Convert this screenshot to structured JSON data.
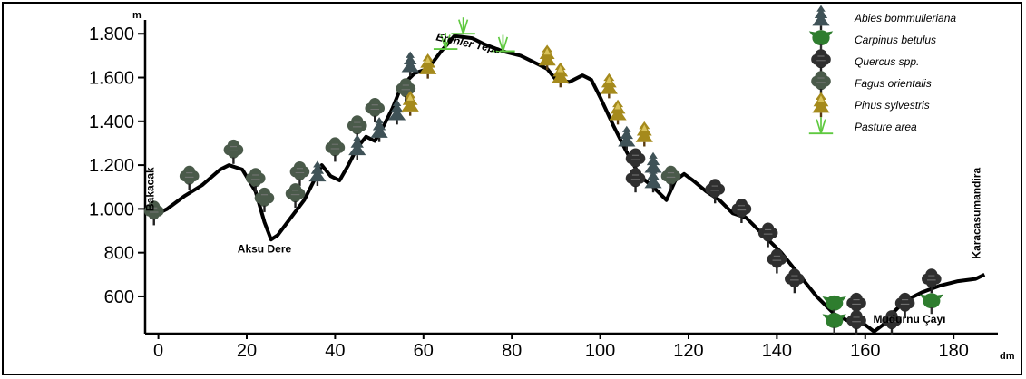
{
  "y_axis": {
    "unit": "m",
    "ticks": [
      {
        "value": 600,
        "label": "600"
      },
      {
        "value": 800,
        "label": "800"
      },
      {
        "value": 1000,
        "label": "1.000"
      },
      {
        "value": 1200,
        "label": "1.200"
      },
      {
        "value": 1400,
        "label": "1.400"
      },
      {
        "value": 1600,
        "label": "1.600"
      },
      {
        "value": 1800,
        "label": "1.800"
      }
    ],
    "range": [
      430,
      1830
    ]
  },
  "x_axis": {
    "unit": "dm",
    "ticks": [
      {
        "value": 0,
        "label": "0"
      },
      {
        "value": 20,
        "label": "20"
      },
      {
        "value": 40,
        "label": "40"
      },
      {
        "value": 60,
        "label": "60"
      },
      {
        "value": 80,
        "label": "80"
      },
      {
        "value": 100,
        "label": "100"
      },
      {
        "value": 120,
        "label": "120"
      },
      {
        "value": 140,
        "label": "140"
      },
      {
        "value": 160,
        "label": "160"
      },
      {
        "value": 180,
        "label": "180"
      }
    ],
    "range": [
      -3,
      189
    ]
  },
  "profile": [
    [
      -2,
      960
    ],
    [
      2,
      1000
    ],
    [
      6,
      1060
    ],
    [
      10,
      1110
    ],
    [
      14,
      1180
    ],
    [
      16,
      1200
    ],
    [
      19,
      1180
    ],
    [
      22,
      1080
    ],
    [
      24,
      940
    ],
    [
      25.5,
      860
    ],
    [
      27,
      880
    ],
    [
      30,
      960
    ],
    [
      33,
      1040
    ],
    [
      35,
      1120
    ],
    [
      37,
      1200
    ],
    [
      39,
      1150
    ],
    [
      41,
      1130
    ],
    [
      43,
      1200
    ],
    [
      45,
      1280
    ],
    [
      47,
      1330
    ],
    [
      49,
      1310
    ],
    [
      51,
      1380
    ],
    [
      53,
      1460
    ],
    [
      55,
      1560
    ],
    [
      58,
      1620
    ],
    [
      61,
      1640
    ],
    [
      64,
      1720
    ],
    [
      67,
      1790
    ],
    [
      71,
      1780
    ],
    [
      74,
      1750
    ],
    [
      78,
      1720
    ],
    [
      82,
      1700
    ],
    [
      86,
      1660
    ],
    [
      88,
      1640
    ],
    [
      90,
      1590
    ],
    [
      93,
      1580
    ],
    [
      96,
      1610
    ],
    [
      98,
      1590
    ],
    [
      100,
      1510
    ],
    [
      103,
      1380
    ],
    [
      106,
      1260
    ],
    [
      109,
      1150
    ],
    [
      112,
      1100
    ],
    [
      115,
      1040
    ],
    [
      117,
      1130
    ],
    [
      119,
      1160
    ],
    [
      121,
      1130
    ],
    [
      124,
      1080
    ],
    [
      127,
      1040
    ],
    [
      130,
      980
    ],
    [
      133,
      960
    ],
    [
      137,
      880
    ],
    [
      141,
      800
    ],
    [
      145,
      700
    ],
    [
      149,
      600
    ],
    [
      153,
      520
    ],
    [
      157,
      480
    ],
    [
      160,
      470
    ],
    [
      162,
      440
    ],
    [
      164,
      470
    ],
    [
      166,
      520
    ],
    [
      169,
      580
    ],
    [
      173,
      620
    ],
    [
      177,
      650
    ],
    [
      181,
      670
    ],
    [
      185,
      680
    ],
    [
      187,
      700
    ]
  ],
  "places": [
    {
      "name": "Bakacak",
      "x": -1,
      "y": 1090,
      "rotate": true
    },
    {
      "name": "Aksu Dere",
      "x": 24,
      "y": 800,
      "rotate": false
    },
    {
      "name": "Erenler Tepe",
      "x": 70,
      "y": 1740,
      "rotate": false
    },
    {
      "name": "Mudurnu Çayı",
      "x": 170,
      "y": 480,
      "rotate": false
    },
    {
      "name": "Karacasumandira",
      "x": 186,
      "y": 980,
      "rotate": true
    }
  ],
  "legend": [
    {
      "key": "abies",
      "label": "Abies bommulleriana",
      "color": "#3f5257"
    },
    {
      "key": "carpinus",
      "label": "Carpinus betulus",
      "color": "#2e7d2e"
    },
    {
      "key": "quercus",
      "label": "Quercus spp.",
      "color": "#2f2f2f"
    },
    {
      "key": "fagus",
      "label": "Fagus orientalis",
      "color": "#4a5a4a"
    },
    {
      "key": "pinus",
      "label": "Pinus sylvestris",
      "color": "#a58a1c"
    },
    {
      "key": "pasture",
      "label": "Pasture area",
      "color": "#5fc940"
    }
  ],
  "vegetation": [
    {
      "key": "fagus",
      "x": -1,
      "y": 980
    },
    {
      "key": "fagus",
      "x": 7,
      "y": 1140
    },
    {
      "key": "fagus",
      "x": 17,
      "y": 1260
    },
    {
      "key": "fagus",
      "x": 22,
      "y": 1130
    },
    {
      "key": "fagus",
      "x": 24,
      "y": 1040
    },
    {
      "key": "fagus",
      "x": 32,
      "y": 1160
    },
    {
      "key": "fagus",
      "x": 31,
      "y": 1060
    },
    {
      "key": "abies",
      "x": 36,
      "y": 1160
    },
    {
      "key": "fagus",
      "x": 40,
      "y": 1270
    },
    {
      "key": "fagus",
      "x": 45,
      "y": 1370
    },
    {
      "key": "abies",
      "x": 45,
      "y": 1280
    },
    {
      "key": "fagus",
      "x": 49,
      "y": 1450
    },
    {
      "key": "abies",
      "x": 50,
      "y": 1360
    },
    {
      "key": "abies",
      "x": 54,
      "y": 1440
    },
    {
      "key": "fagus",
      "x": 56,
      "y": 1540
    },
    {
      "key": "abies",
      "x": 57,
      "y": 1660
    },
    {
      "key": "pinus",
      "x": 57,
      "y": 1480
    },
    {
      "key": "pinus",
      "x": 61,
      "y": 1650
    },
    {
      "key": "pasture",
      "x": 65,
      "y": 1760
    },
    {
      "key": "pasture",
      "x": 69,
      "y": 1830
    },
    {
      "key": "pasture",
      "x": 78,
      "y": 1750
    },
    {
      "key": "pinus",
      "x": 88,
      "y": 1690
    },
    {
      "key": "pinus",
      "x": 91,
      "y": 1610
    },
    {
      "key": "pinus",
      "x": 102,
      "y": 1560
    },
    {
      "key": "pinus",
      "x": 104,
      "y": 1440
    },
    {
      "key": "abies",
      "x": 106,
      "y": 1320
    },
    {
      "key": "pinus",
      "x": 110,
      "y": 1340
    },
    {
      "key": "quercus",
      "x": 108,
      "y": 1220
    },
    {
      "key": "abies",
      "x": 112,
      "y": 1200
    },
    {
      "key": "quercus",
      "x": 108,
      "y": 1130
    },
    {
      "key": "abies",
      "x": 112,
      "y": 1130
    },
    {
      "key": "fagus",
      "x": 116,
      "y": 1140
    },
    {
      "key": "quercus",
      "x": 126,
      "y": 1080
    },
    {
      "key": "quercus",
      "x": 132,
      "y": 990
    },
    {
      "key": "quercus",
      "x": 138,
      "y": 880
    },
    {
      "key": "quercus",
      "x": 140,
      "y": 760
    },
    {
      "key": "quercus",
      "x": 144,
      "y": 670
    },
    {
      "key": "carpinus",
      "x": 153,
      "y": 560
    },
    {
      "key": "carpinus",
      "x": 153,
      "y": 480
    },
    {
      "key": "quercus",
      "x": 158,
      "y": 560
    },
    {
      "key": "quercus",
      "x": 158,
      "y": 480
    },
    {
      "key": "quercus",
      "x": 166,
      "y": 480
    },
    {
      "key": "quercus",
      "x": 169,
      "y": 560
    },
    {
      "key": "quercus",
      "x": 175,
      "y": 670
    },
    {
      "key": "carpinus",
      "x": 175,
      "y": 570
    }
  ]
}
